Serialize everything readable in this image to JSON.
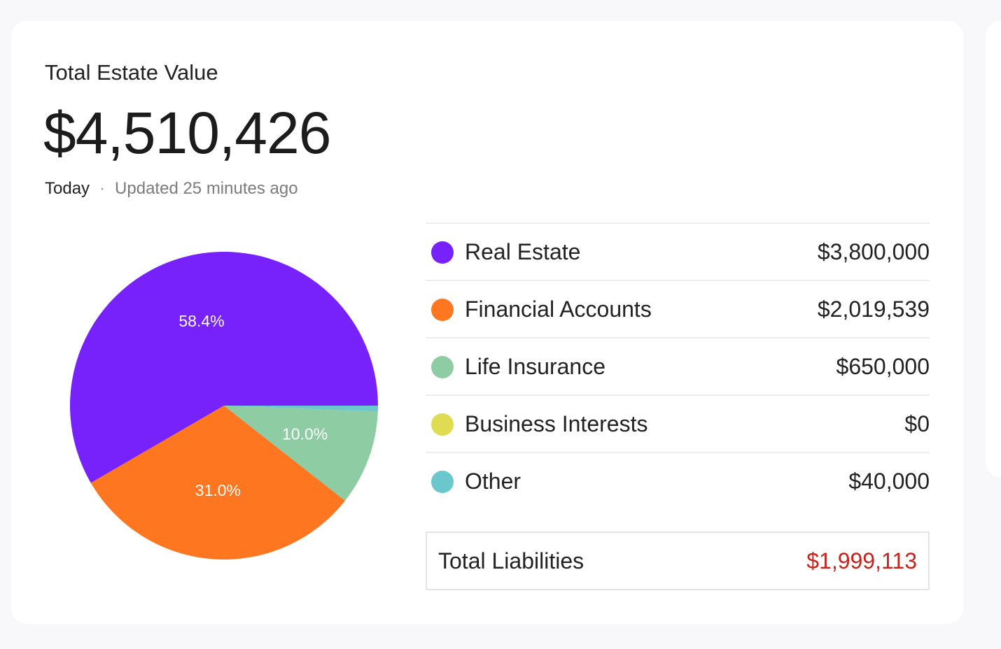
{
  "header": {
    "title": "Total Estate Value",
    "amount": "$4,510,426",
    "date_label": "Today",
    "separator": "·",
    "updated_text": "Updated 25 minutes ago"
  },
  "chart_data": {
    "type": "pie",
    "categories": [
      "Real Estate",
      "Financial Accounts",
      "Life Insurance",
      "Business Interests",
      "Other"
    ],
    "values": [
      3800000,
      2019539,
      650000,
      0,
      40000
    ],
    "percent_labels": [
      "58.4%",
      "31.0%",
      "10.0%",
      "",
      ""
    ],
    "colors": [
      "#7722fb",
      "#fe761f",
      "#8ecca4",
      "#e0dc52",
      "#6ac8cc"
    ],
    "legend": "right"
  },
  "legend": {
    "items": [
      {
        "label": "Real Estate",
        "value": "$3,800,000",
        "color": "#7722fb"
      },
      {
        "label": "Financial Accounts",
        "value": "$2,019,539",
        "color": "#fe761f"
      },
      {
        "label": "Life Insurance",
        "value": "$650,000",
        "color": "#8ecca4"
      },
      {
        "label": "Business Interests",
        "value": "$0",
        "color": "#e0dc52"
      },
      {
        "label": "Other",
        "value": "$40,000",
        "color": "#6ac8cc"
      }
    ]
  },
  "liabilities": {
    "label": "Total Liabilities",
    "value": "$1,999,113",
    "color": "#c8231c"
  }
}
